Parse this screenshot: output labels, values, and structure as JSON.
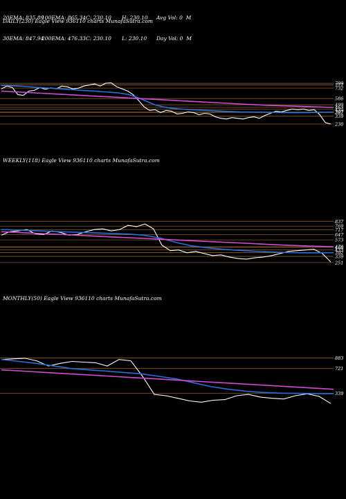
{
  "header": {
    "row1": [
      "20EMA: 835.89",
      "100EMA: 865.34",
      "C: 230.10",
      "H: 230.10",
      "Avg Vol: 0  M"
    ],
    "row2": [
      "30EMA: 847.94",
      "200EMA: 476.33",
      "C: 230.10",
      "L: 230.10",
      "Day Vol: 0  M"
    ]
  },
  "chart_data": [
    {
      "type": "line",
      "title": "DAILY(230) Eagle  View  936110  charts MunafaSutra.com",
      "price_levels": [
        "799",
        "777",
        "732",
        "586",
        "499",
        "463",
        "435",
        "397",
        "392",
        "339",
        "230"
      ],
      "series": [
        {
          "values": [
            720,
            760,
            740,
            640,
            630,
            690,
            700,
            740,
            715,
            735,
            720,
            760,
            750,
            720,
            730,
            760,
            775,
            790,
            760,
            800,
            805,
            750,
            720,
            690,
            640,
            560,
            470,
            420,
            430,
            390,
            420,
            410,
            370,
            380,
            400,
            390,
            360,
            380,
            370,
            330,
            310,
            300,
            320,
            310,
            300,
            320,
            330,
            310,
            350,
            380,
            410,
            400,
            420,
            440,
            430,
            440,
            420,
            430,
            360,
            250,
            230
          ]
        },
        {
          "values": [
            770,
            766,
            760,
            752,
            744,
            736,
            728,
            720,
            712,
            704,
            696,
            688,
            680,
            672,
            660,
            640,
            600,
            550,
            500,
            470,
            450,
            440,
            432,
            426,
            420,
            415,
            410,
            405,
            400,
            398,
            396,
            394,
            392,
            390,
            388,
            388,
            390,
            392,
            394,
            396
          ]
        },
        {
          "values": [
            690,
            680,
            670,
            660,
            650,
            640,
            630,
            620,
            610,
            600,
            590,
            580,
            570,
            560,
            550,
            540,
            530,
            520,
            510,
            500,
            492,
            486,
            480,
            474,
            468,
            462
          ]
        }
      ]
    },
    {
      "type": "line",
      "title": "WEEKLY(118) Eagle  View  936110  charts MunafaSutra.com",
      "price_levels": [
        "837",
        "769",
        "717",
        "647",
        "573",
        "476",
        "468",
        "433",
        "392",
        "339",
        "251"
      ],
      "series": [
        {
          "values": [
            640,
            690,
            700,
            720,
            660,
            650,
            700,
            680,
            640,
            650,
            690,
            720,
            730,
            700,
            720,
            780,
            760,
            800,
            730,
            500,
            420,
            430,
            390,
            410,
            380,
            350,
            360,
            330,
            310,
            300,
            320,
            330,
            350,
            380,
            410,
            420,
            430,
            440,
            380,
            260
          ]
        },
        {
          "values": [
            720,
            712,
            704,
            696,
            688,
            680,
            672,
            664,
            656,
            640,
            600,
            540,
            490,
            460,
            440,
            425,
            412,
            402,
            394,
            390,
            390,
            392
          ]
        },
        {
          "values": [
            690,
            674,
            658,
            642,
            626,
            610,
            594,
            578,
            562,
            546,
            530,
            514,
            498,
            486,
            476
          ]
        }
      ]
    },
    {
      "type": "line",
      "title": "MONTHLY(50) Eagle  View  936110  charts MunafaSutra.com",
      "price_levels": [
        "883",
        "721",
        "339"
      ],
      "series": [
        {
          "values": [
            860,
            870,
            880,
            840,
            760,
            800,
            830,
            820,
            810,
            760,
            860,
            840,
            600,
            320,
            300,
            260,
            220,
            200,
            230,
            240,
            300,
            320,
            280,
            260,
            250,
            300,
            330,
            290,
            180
          ]
        },
        {
          "values": [
            860,
            830,
            800,
            760,
            720,
            700,
            680,
            660,
            640,
            600,
            560,
            500,
            440,
            400,
            370,
            350,
            340,
            336,
            334,
            332
          ]
        },
        {
          "values": [
            700,
            680,
            660,
            640,
            620,
            600,
            580,
            560,
            540,
            520,
            500,
            480,
            460,
            440,
            420,
            400
          ]
        }
      ]
    }
  ]
}
